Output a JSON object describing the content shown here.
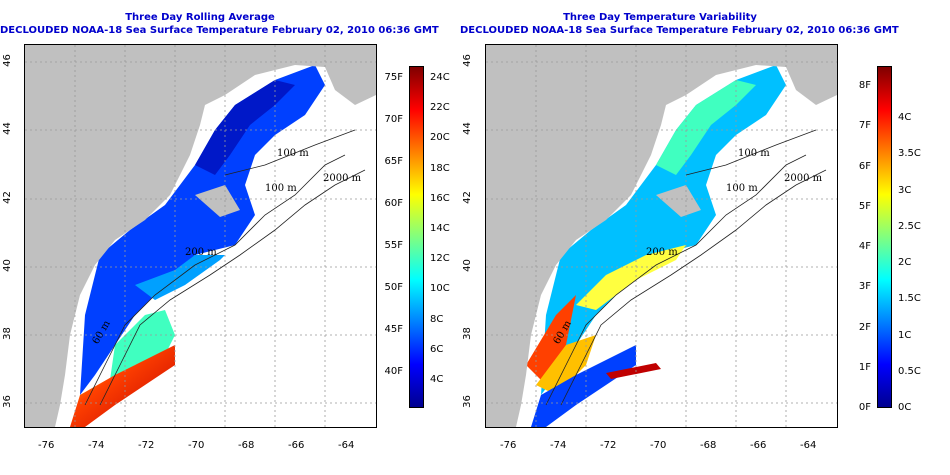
{
  "left_panel": {
    "title": "Three Day Rolling Average",
    "subtitle": "DECLOUDED NOAA-18 Sea Surface Temperature February 02, 2010 06:36 GMT",
    "colorbar_left_labels": [
      "75F",
      "70F",
      "65F",
      "60F",
      "55F",
      "50F",
      "45F",
      "40F"
    ],
    "colorbar_right_labels": [
      "24C",
      "22C",
      "20C",
      "18C",
      "16C",
      "14C",
      "12C",
      "10C",
      "8C",
      "6C",
      "4C"
    ]
  },
  "right_panel": {
    "title": "Three Day Temperature Variability",
    "subtitle": "DECLOUDED NOAA-18 Sea Surface Temperature February 02, 2010 06:36 GMT",
    "colorbar_left_labels": [
      "8F",
      "7F",
      "6F",
      "5F",
      "4F",
      "3F",
      "2F",
      "1F",
      "0F"
    ],
    "colorbar_right_labels": [
      "4C",
      "3.5C",
      "3C",
      "2.5C",
      "2C",
      "1.5C",
      "1C",
      "0.5C",
      "0C"
    ]
  },
  "x_ticks": [
    "-76",
    "-74",
    "-72",
    "-70",
    "-68",
    "-66",
    "-64"
  ],
  "y_ticks": [
    "46",
    "44",
    "42",
    "40",
    "38",
    "36"
  ],
  "contour_labels": {
    "left": [
      "100 m",
      "2000 m",
      "100 m",
      "200 m",
      "60 m"
    ],
    "right": [
      "100 m",
      "2000 m",
      "100 m",
      "200 m",
      "60 m"
    ]
  },
  "colors": {
    "land": "#c0c0c0",
    "title_text": "#0000cc",
    "jet": [
      "#00008f",
      "#0000ff",
      "#0080ff",
      "#00ffff",
      "#80ff80",
      "#ffff00",
      "#ff8000",
      "#ff0000",
      "#800000"
    ]
  }
}
